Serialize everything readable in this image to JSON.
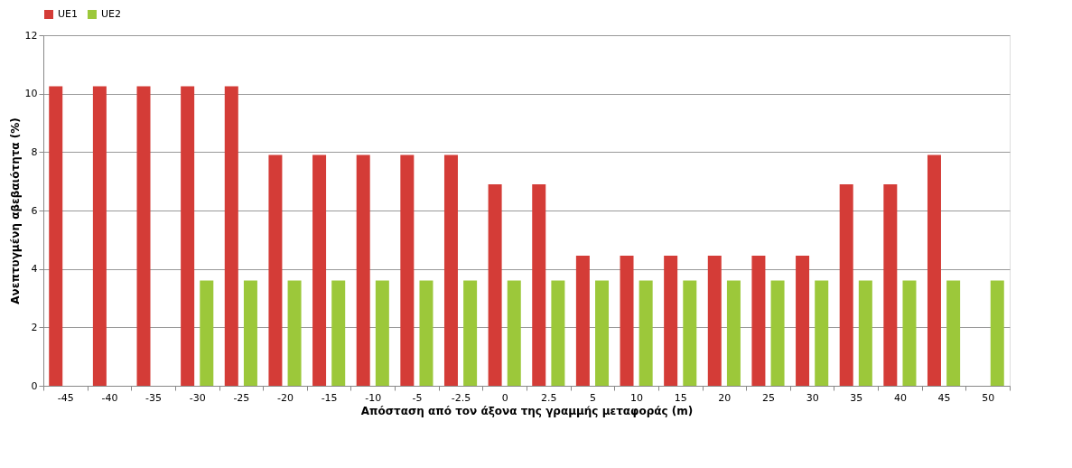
{
  "chart_data": {
    "type": "bar",
    "xlabel": "Απόσταση από τον άξονα της γραμμής μεταφοράς (m)",
    "ylabel": "Ανεπτυγμένη αβεβαιότητα (%)",
    "categories": [
      "-45",
      "-40",
      "-35",
      "-30",
      "-25",
      "-20",
      "-15",
      "-10",
      "-5",
      "-2.5",
      "0",
      "2.5",
      "5",
      "10",
      "15",
      "20",
      "25",
      "30",
      "35",
      "40",
      "45",
      "50"
    ],
    "series": [
      {
        "name": "UE1",
        "color": "#d43c37",
        "values": [
          10.25,
          10.25,
          10.25,
          10.25,
          10.25,
          7.9,
          7.9,
          7.9,
          7.9,
          7.9,
          6.9,
          6.9,
          4.45,
          4.45,
          4.45,
          4.45,
          4.45,
          4.45,
          6.9,
          6.9,
          7.9,
          null
        ]
      },
      {
        "name": "UE2",
        "color": "#9cc83a",
        "values": [
          null,
          null,
          null,
          3.6,
          3.6,
          3.6,
          3.6,
          3.6,
          3.6,
          3.6,
          3.6,
          3.6,
          3.6,
          3.6,
          3.6,
          3.6,
          3.6,
          3.6,
          3.6,
          3.6,
          3.6,
          3.6
        ]
      }
    ],
    "ylim": [
      0,
      12
    ],
    "yticks": [
      0,
      2,
      4,
      6,
      8,
      10,
      12
    ],
    "grid": "y",
    "legend": "top"
  }
}
